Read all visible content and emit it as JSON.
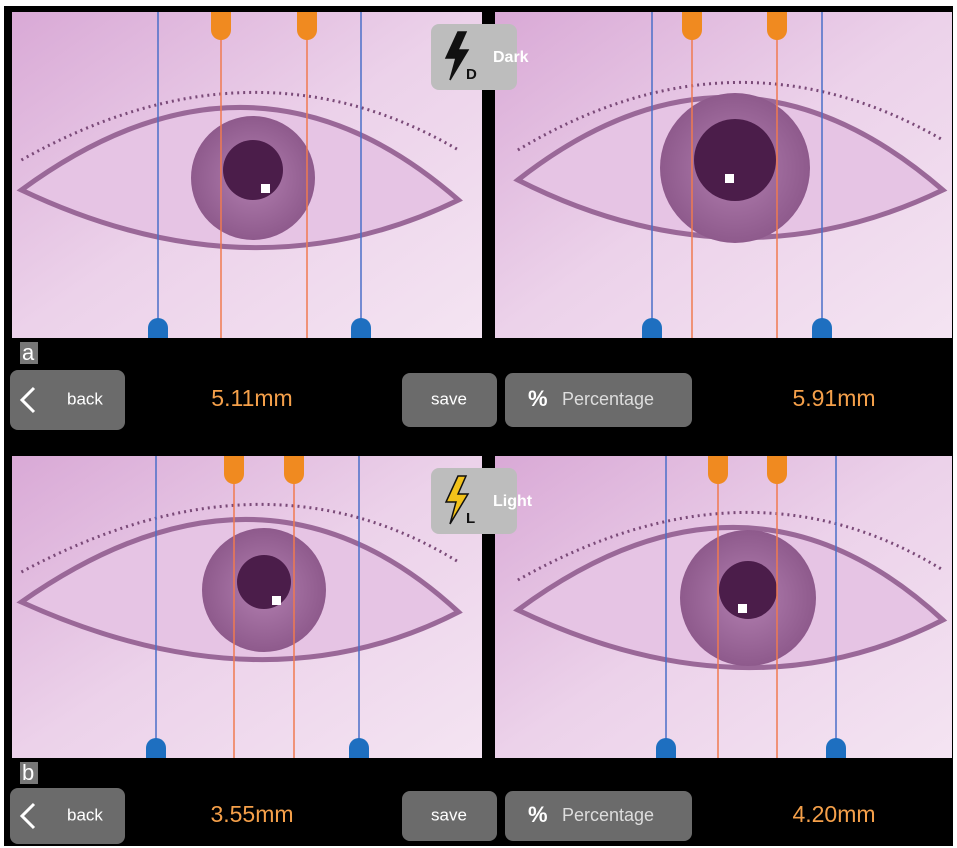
{
  "panels": [
    {
      "label": "a",
      "mode": "Dark",
      "mode_badge": "D",
      "back": "back",
      "left_measurement": "5.11mm",
      "save": "save",
      "percent_icon": "%",
      "percentage": "Percentage",
      "right_measurement": "5.91mm"
    },
    {
      "label": "b",
      "mode": "Light",
      "mode_badge": "L",
      "back": "back",
      "left_measurement": "3.55mm",
      "save": "save",
      "percent_icon": "%",
      "percentage": "Percentage",
      "right_measurement": "4.20mm"
    }
  ]
}
